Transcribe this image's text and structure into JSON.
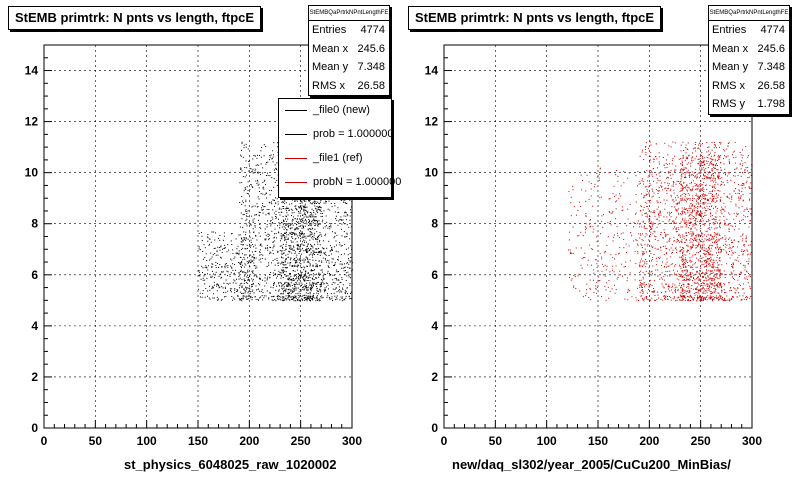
{
  "chart_data": [
    {
      "type": "scatter",
      "title": "StEMB primtrk: N pnts vs length, ftpcE",
      "xlabel": "st_physics_6048025_raw_1020002",
      "ylabel": "",
      "xlim": [
        0,
        300
      ],
      "ylim": [
        0,
        15
      ],
      "x_ticks": [
        0,
        50,
        100,
        150,
        200,
        250,
        300
      ],
      "y_ticks": [
        0,
        2,
        4,
        6,
        8,
        10,
        12,
        14
      ],
      "grid": true,
      "point_color": "#000000",
      "series": [
        {
          "name": "_file0 (new)",
          "count": 4774,
          "regions": [
            {
              "x": [
                150,
                205
              ],
              "y": [
                5,
                7.5
              ],
              "density": "low"
            },
            {
              "x": [
                190,
                300
              ],
              "y": [
                5,
                11
              ],
              "density": "high"
            },
            {
              "x": [
                230,
                270
              ],
              "y": [
                5,
                11
              ],
              "density": "peak"
            }
          ]
        }
      ],
      "stats": {
        "name": "StEMBQaPrtrkNPntLengthFE",
        "rows": [
          {
            "label": "Entries",
            "value": "4774"
          },
          {
            "label": "Mean x",
            "value": "245.6"
          },
          {
            "label": "Mean y",
            "value": "7.348"
          },
          {
            "label": "RMS x",
            "value": "26.58"
          }
        ]
      },
      "legend": [
        {
          "label": "_file0 (new)",
          "color": "#000000"
        },
        {
          "label": "prob = 1.000000",
          "color": "#000000"
        },
        {
          "label": "_file1 (ref)",
          "color": "#cc0000"
        },
        {
          "label": "probN = 1.000000",
          "color": "#cc0000"
        }
      ]
    },
    {
      "type": "scatter",
      "title": "StEMB primtrk: N pnts vs length, ftpcE",
      "xlabel": "new/daq_sl302/year_2005/CuCu200_MinBias/",
      "ylabel": "",
      "xlim": [
        0,
        300
      ],
      "ylim": [
        0,
        15
      ],
      "x_ticks": [
        0,
        50,
        100,
        150,
        200,
        250,
        300
      ],
      "y_ticks": [
        0,
        2,
        4,
        6,
        8,
        10,
        12,
        14
      ],
      "grid": true,
      "point_color": "#cc0000",
      "series": [
        {
          "name": "_file1 (ref)",
          "count": 4774,
          "regions": [
            {
              "x": [
                120,
                205
              ],
              "y": [
                5,
                10
              ],
              "density": "low"
            },
            {
              "x": [
                190,
                300
              ],
              "y": [
                5,
                11
              ],
              "density": "high"
            },
            {
              "x": [
                230,
                270
              ],
              "y": [
                5,
                11
              ],
              "density": "peak"
            }
          ]
        }
      ],
      "stats": {
        "name": "StEMBQaPrtrkNPntLengthFE",
        "rows": [
          {
            "label": "Entries",
            "value": "4774"
          },
          {
            "label": "Mean x",
            "value": "245.6"
          },
          {
            "label": "Mean y",
            "value": "7.348"
          },
          {
            "label": "RMS x",
            "value": "26.58"
          },
          {
            "label": "RMS y",
            "value": "1.798"
          }
        ]
      }
    }
  ]
}
